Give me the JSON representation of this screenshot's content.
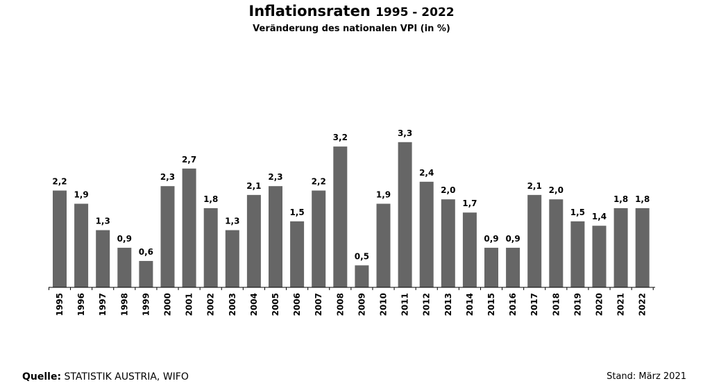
{
  "title": {
    "main": "Inflationsraten",
    "range": "1995 - 2022"
  },
  "subtitle": "Veränderung des nationalen VPI (in %)",
  "footer": {
    "source_label": "Quelle:",
    "source_value": "STATISTIK AUSTRIA, WIFO",
    "stand": "Stand: März 2021"
  },
  "colors": {
    "bar": "#666666",
    "axis": "#000000"
  },
  "chart_data": {
    "type": "bar",
    "categories": [
      "1995",
      "1996",
      "1997",
      "1998",
      "1999",
      "2000",
      "2001",
      "2002",
      "2003",
      "2004",
      "2005",
      "2006",
      "2007",
      "2008",
      "2009",
      "2010",
      "2011",
      "2012",
      "2013",
      "2014",
      "2015",
      "2016",
      "2017",
      "2018",
      "2019",
      "2020",
      "2021",
      "2022"
    ],
    "values": [
      2.2,
      1.9,
      1.3,
      0.9,
      0.6,
      2.3,
      2.7,
      1.8,
      1.3,
      2.1,
      2.3,
      1.5,
      2.2,
      3.2,
      0.5,
      1.9,
      3.3,
      2.4,
      2.0,
      1.7,
      0.9,
      0.9,
      2.1,
      2.0,
      1.5,
      1.4,
      1.8,
      1.8
    ],
    "value_labels": [
      "2,2",
      "1,9",
      "1,3",
      "0,9",
      "0,6",
      "2,3",
      "2,7",
      "1,8",
      "1,3",
      "2,1",
      "2,3",
      "1,5",
      "2,2",
      "3,2",
      "0,5",
      "1,9",
      "3,3",
      "2,4",
      "2,0",
      "1,7",
      "0,9",
      "0,9",
      "2,1",
      "2,0",
      "1,5",
      "1,4",
      "1,8",
      "1,8"
    ],
    "ylim": [
      0,
      3.3
    ],
    "grid": false,
    "legend": "none"
  }
}
